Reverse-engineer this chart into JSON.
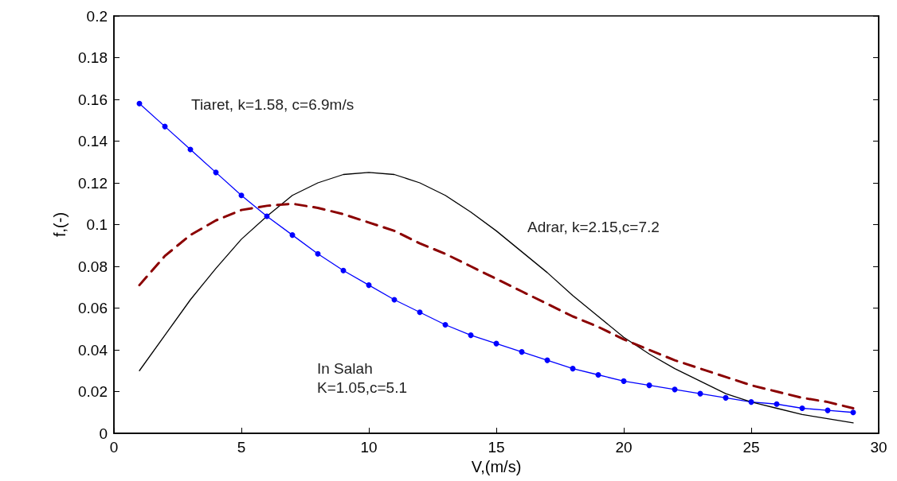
{
  "chart_data": {
    "type": "line",
    "xlabel": "V,(m/s)",
    "ylabel": "f,(-)",
    "x": [
      1,
      2,
      3,
      4,
      5,
      6,
      7,
      8,
      9,
      10,
      11,
      12,
      13,
      14,
      15,
      16,
      17,
      18,
      19,
      20,
      21,
      22,
      23,
      24,
      25,
      26,
      27,
      28,
      29
    ],
    "series": [
      {
        "color": "#0000ff",
        "marker": "circle",
        "line_style": "solid",
        "values": [
          0.158,
          0.147,
          0.136,
          0.125,
          0.114,
          0.104,
          0.095,
          0.086,
          0.078,
          0.071,
          0.064,
          0.058,
          0.052,
          0.047,
          0.043,
          0.039,
          0.035,
          0.031,
          0.028,
          0.025,
          0.023,
          0.021,
          0.019,
          0.017,
          0.015,
          0.014,
          0.012,
          0.011,
          0.01
        ]
      },
      {
        "color": "#000000",
        "marker": "none",
        "line_style": "solid",
        "values": [
          0.03,
          0.047,
          0.064,
          0.079,
          0.093,
          0.104,
          0.114,
          0.12,
          0.124,
          0.125,
          0.124,
          0.12,
          0.114,
          0.106,
          0.097,
          0.087,
          0.077,
          0.066,
          0.056,
          0.046,
          0.038,
          0.031,
          0.025,
          0.019,
          0.015,
          0.012,
          0.009,
          0.007,
          0.005
        ]
      },
      {
        "color": "#8b0000",
        "marker": "none",
        "line_style": "dashed",
        "values": [
          0.071,
          0.085,
          0.095,
          0.102,
          0.107,
          0.109,
          0.11,
          0.108,
          0.105,
          0.101,
          0.097,
          0.091,
          0.086,
          0.08,
          0.074,
          0.068,
          0.062,
          0.056,
          0.051,
          0.045,
          0.04,
          0.035,
          0.031,
          0.027,
          0.023,
          0.02,
          0.017,
          0.015,
          0.012
        ]
      }
    ],
    "annotations": [
      "Tiaret, k=1.58, c=6.9m/s",
      "Adrar, k=2.15,c=7.2",
      "In Salah\nK=1.05,c=5.1"
    ],
    "xlim": [
      0,
      30
    ],
    "xticks": [
      0,
      5,
      10,
      15,
      20,
      25,
      30
    ],
    "ylim": [
      0,
      0.2
    ],
    "yticks": [
      0,
      0.02,
      0.04,
      0.06,
      0.08,
      0.1,
      0.12,
      0.14,
      0.16,
      0.18,
      0.2
    ],
    "grid": false
  }
}
